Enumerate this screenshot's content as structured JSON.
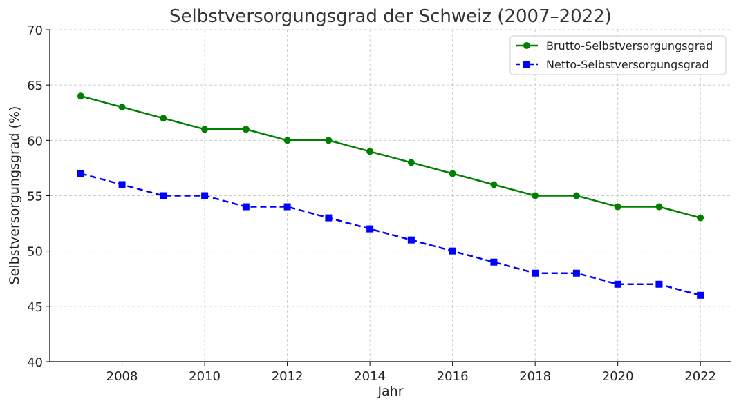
{
  "chart_data": {
    "type": "line",
    "title": "Selbstversorgungsgrad der Schweiz (2007–2022)",
    "xlabel": "Jahr",
    "ylabel": "Selbstversorgungsgrad (%)",
    "x": [
      2007,
      2008,
      2009,
      2010,
      2011,
      2012,
      2013,
      2014,
      2015,
      2016,
      2017,
      2018,
      2019,
      2020,
      2021,
      2022
    ],
    "xlim": [
      2006.25,
      2022.75
    ],
    "ylim": [
      40,
      70
    ],
    "xticks": [
      2008,
      2010,
      2012,
      2014,
      2016,
      2018,
      2020,
      2022
    ],
    "yticks": [
      40,
      45,
      50,
      55,
      60,
      65,
      70
    ],
    "grid": true,
    "legend_position": "top-right",
    "series": [
      {
        "name": "Brutto-Selbstversorgungsgrad",
        "values": [
          64,
          63,
          62,
          61,
          61,
          60,
          60,
          59,
          58,
          57,
          56,
          55,
          55,
          54,
          54,
          53
        ],
        "color": "#008000",
        "line_style": "solid",
        "marker": "circle"
      },
      {
        "name": "Netto-Selbstversorgungsgrad",
        "values": [
          57,
          56,
          55,
          55,
          54,
          54,
          53,
          52,
          51,
          50,
          49,
          48,
          48,
          47,
          47,
          46
        ],
        "color": "#0000ff",
        "line_style": "dashed",
        "marker": "square"
      }
    ]
  }
}
